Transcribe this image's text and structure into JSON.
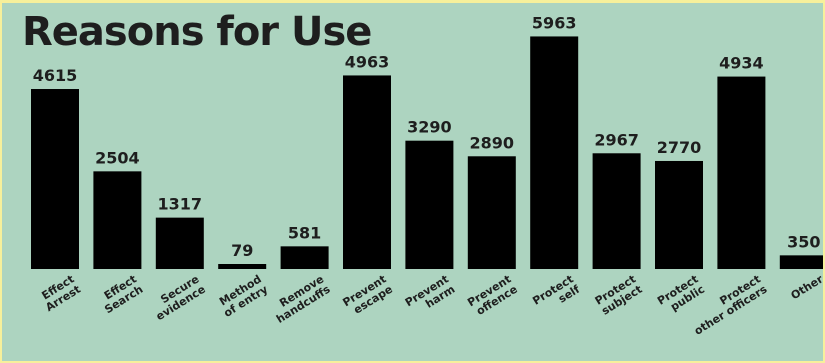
{
  "chart_data": {
    "type": "bar",
    "title": "Reasons for Use",
    "xlabel": "",
    "ylabel": "",
    "categories": [
      [
        "Effect",
        "Arrest"
      ],
      [
        "Effect",
        "Search"
      ],
      [
        "Secure",
        "evidence"
      ],
      [
        "Method",
        "of entry"
      ],
      [
        "Remove",
        "handcuffs"
      ],
      [
        "Prevent",
        "escape"
      ],
      [
        "Prevent",
        "harm"
      ],
      [
        "Prevent",
        "offence"
      ],
      [
        "Protect",
        "self"
      ],
      [
        "Protect",
        "subject"
      ],
      [
        "Protect",
        "public"
      ],
      [
        "Protect",
        "other officers"
      ],
      [
        "Other"
      ]
    ],
    "values": [
      4615,
      2504,
      1317,
      79,
      581,
      4963,
      3290,
      2890,
      5963,
      2967,
      2770,
      4934,
      350
    ],
    "ylim": [
      0,
      6000
    ],
    "grid": false,
    "legend": "none",
    "colors": {
      "background": "#add4c0",
      "frame": "#f7f09b",
      "bar": "#000000",
      "text": "#1e1e1e"
    }
  }
}
